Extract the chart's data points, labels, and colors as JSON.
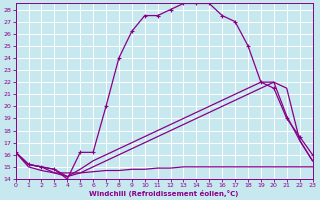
{
  "xlabel": "Windchill (Refroidissement éolien,°C)",
  "bg_color": "#c8e8f0",
  "grid_color": "#ffffff",
  "line_color": "#880088",
  "xlim": [
    0,
    23
  ],
  "ylim": [
    14,
    28.5
  ],
  "xticks": [
    0,
    1,
    2,
    3,
    4,
    5,
    6,
    7,
    8,
    9,
    10,
    11,
    12,
    13,
    14,
    15,
    16,
    17,
    18,
    19,
    20,
    21,
    22,
    23
  ],
  "yticks": [
    14,
    15,
    16,
    17,
    18,
    19,
    20,
    21,
    22,
    23,
    24,
    25,
    26,
    27,
    28
  ],
  "curve1_x": [
    0,
    1,
    2,
    3,
    4,
    5,
    6,
    7,
    8,
    9,
    10,
    11,
    12,
    13,
    14,
    15,
    16,
    17,
    18,
    19,
    20,
    21,
    22,
    23
  ],
  "curve1_y": [
    16.2,
    15.2,
    15.0,
    14.8,
    14.0,
    16.2,
    16.2,
    20.0,
    24.0,
    26.2,
    27.5,
    27.5,
    28.0,
    28.5,
    28.5,
    28.5,
    27.5,
    27.0,
    25.0,
    22.0,
    21.5,
    19.0,
    17.5,
    16.0
  ],
  "curve2_x": [
    0,
    1,
    2,
    3,
    4,
    5,
    6,
    7,
    8,
    9,
    10,
    11,
    12,
    13,
    14,
    15,
    16,
    17,
    18,
    19,
    20,
    21,
    22,
    23
  ],
  "curve2_y": [
    16.2,
    15.0,
    14.7,
    14.5,
    14.5,
    14.5,
    14.6,
    14.7,
    14.7,
    14.8,
    14.8,
    14.9,
    14.9,
    15.0,
    15.0,
    15.0,
    15.0,
    15.0,
    15.0,
    15.0,
    15.0,
    15.0,
    15.0,
    15.0
  ],
  "curve3_x": [
    0,
    1,
    2,
    3,
    4,
    5,
    6,
    7,
    8,
    9,
    10,
    11,
    12,
    13,
    14,
    15,
    16,
    17,
    18,
    19,
    20,
    21,
    22,
    23
  ],
  "curve3_y": [
    16.2,
    15.2,
    15.0,
    14.8,
    14.2,
    14.8,
    15.5,
    16.0,
    16.5,
    17.0,
    17.5,
    18.0,
    18.5,
    19.0,
    19.5,
    20.0,
    20.5,
    21.0,
    21.5,
    22.0,
    22.0,
    19.2,
    17.2,
    15.5
  ],
  "curve4_x": [
    0,
    1,
    2,
    3,
    4,
    5,
    6,
    7,
    8,
    9,
    10,
    11,
    12,
    13,
    14,
    15,
    16,
    17,
    18,
    19,
    20,
    21,
    22,
    23
  ],
  "curve4_y": [
    16.2,
    15.2,
    15.0,
    14.5,
    14.2,
    14.5,
    15.0,
    15.5,
    16.0,
    16.5,
    17.0,
    17.5,
    18.0,
    18.5,
    19.0,
    19.5,
    20.0,
    20.5,
    21.0,
    21.5,
    22.0,
    21.5,
    17.2,
    15.5
  ]
}
